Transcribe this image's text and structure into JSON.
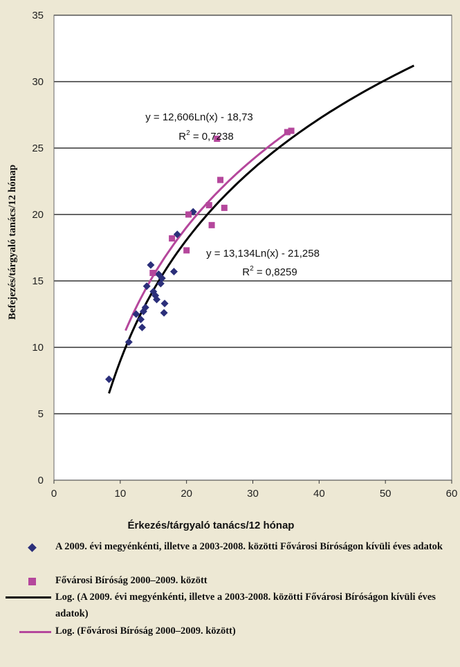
{
  "chart_data": {
    "type": "scatter",
    "xlabel": "Érkezés/tárgyaló tanács/12 hónap",
    "ylabel": "Befejezés/tárgyaló tanács/12 hónap",
    "xlim": [
      0,
      60
    ],
    "ylim": [
      0,
      35
    ],
    "x_ticks": [
      "0",
      "10",
      "20",
      "30",
      "40",
      "50",
      "60"
    ],
    "y_ticks": [
      "0",
      "5",
      "10",
      "15",
      "20",
      "25",
      "30",
      "35"
    ],
    "grid": "horizontal",
    "legend_position": "bottom",
    "series": [
      {
        "name": "A 2009. évi megyénkénti, illetve a 2003-2008. közötti Fővárosi Bíróságon kívüli éves adatok",
        "marker": "diamond",
        "color": "#2b2f7a",
        "points": [
          [
            8.3,
            7.6
          ],
          [
            11.3,
            10.4
          ],
          [
            12.4,
            12.5
          ],
          [
            13.1,
            12.1
          ],
          [
            13.3,
            11.5
          ],
          [
            13.5,
            12.7
          ],
          [
            13.8,
            13.0
          ],
          [
            14.0,
            14.6
          ],
          [
            14.6,
            16.2
          ],
          [
            15.0,
            14.2
          ],
          [
            15.3,
            13.9
          ],
          [
            15.5,
            13.6
          ],
          [
            15.8,
            15.5
          ],
          [
            16.1,
            14.8
          ],
          [
            16.3,
            15.2
          ],
          [
            16.6,
            12.6
          ],
          [
            16.7,
            13.3
          ],
          [
            18.1,
            15.7
          ],
          [
            18.6,
            18.5
          ],
          [
            21.0,
            20.2
          ]
        ]
      },
      {
        "name": "Fővárosi Bíróság 2000–2009. között",
        "marker": "square",
        "color": "#b5479c",
        "points": [
          [
            14.9,
            15.6
          ],
          [
            17.8,
            18.2
          ],
          [
            20.0,
            17.3
          ],
          [
            20.3,
            20.0
          ],
          [
            23.4,
            20.7
          ],
          [
            23.8,
            19.2
          ],
          [
            24.6,
            25.7
          ],
          [
            25.1,
            22.6
          ],
          [
            25.7,
            20.5
          ],
          [
            35.2,
            26.2
          ],
          [
            35.8,
            26.3
          ]
        ]
      }
    ],
    "trendlines": [
      {
        "name": "Log. (A 2009. évi megyénkénti, illetve a 2003-2008. közötti Fővárosi Bíróságon kívüli éves adatok)",
        "color": "#000000",
        "a": 13.134,
        "b": -21.258,
        "x_range": [
          8.3,
          54.3
        ],
        "equation": "y = 13,134Ln(x) - 21,258",
        "r2": "0,8259"
      },
      {
        "name": "Log. (Fővárosi Bíróság 2000–2009. között)",
        "color": "#b5479c",
        "a": 12.606,
        "b": -18.73,
        "x_range": [
          10.8,
          35.8
        ],
        "equation": "y = 12,606Ln(x) - 18,73",
        "r2": "0,7238"
      }
    ]
  },
  "legend": {
    "items": [
      {
        "marker": "diamond",
        "text": "A 2009. évi megyénkénti, illetve a 2003-2008. közötti Fővárosi Bíróságon kívüli éves adatok"
      },
      {
        "marker": "square",
        "text": "Fővárosi Bíróság 2000–2009. között"
      },
      {
        "marker": "line-black",
        "text": "Log. (A 2009. évi megyénkénti, illetve a 2003-2008. közötti Fővárosi Bíróságon kívüli éves adatok)"
      },
      {
        "marker": "line-pink",
        "text": "Log. (Fővárosi Bíróság 2000–2009. között)"
      }
    ]
  },
  "colors": {
    "background": "#ede8d4",
    "plot_area": "#ffffff",
    "series1": "#2b2f7a",
    "series2": "#b5479c",
    "trend1": "#000000",
    "trend2": "#b5479c"
  }
}
